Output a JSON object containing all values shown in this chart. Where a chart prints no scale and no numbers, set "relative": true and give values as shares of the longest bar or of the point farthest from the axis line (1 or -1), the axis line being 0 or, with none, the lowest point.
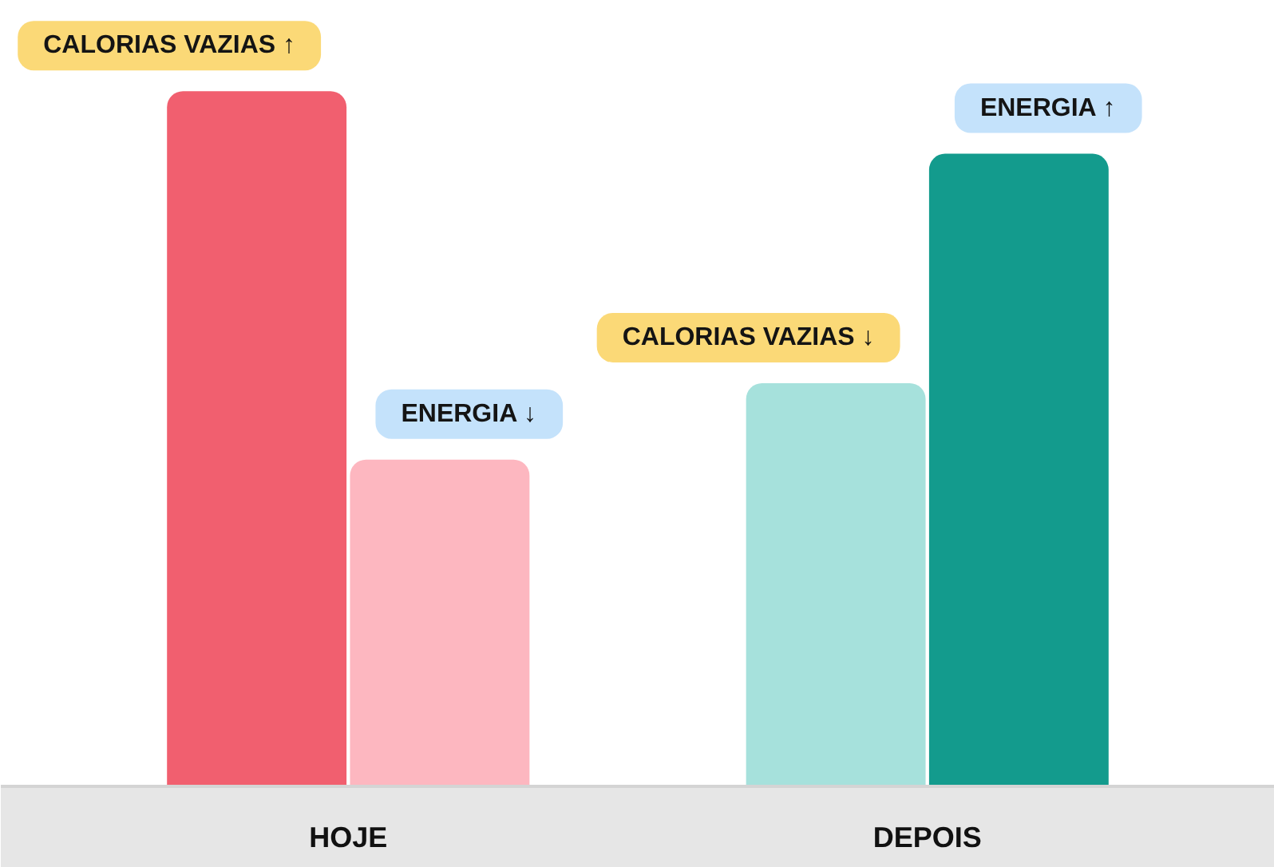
{
  "chart_data": {
    "type": "bar",
    "relative": true,
    "categories": [
      "HOJE",
      "DEPOIS"
    ],
    "series": [
      {
        "values": [
          1,
          0.58
        ],
        "colors": [
          "#f15f6f",
          "#a6e1dc"
        ]
      },
      {
        "values": [
          0.47,
          0.91
        ],
        "colors": [
          "#fdb7c0",
          "#139b8d"
        ]
      }
    ],
    "annotations": [
      "CALORIAS VAZIAS ↑",
      "ENERGIA ↓",
      "CALORIAS VAZIAS ↓",
      "ENERGIA ↑"
    ]
  }
}
